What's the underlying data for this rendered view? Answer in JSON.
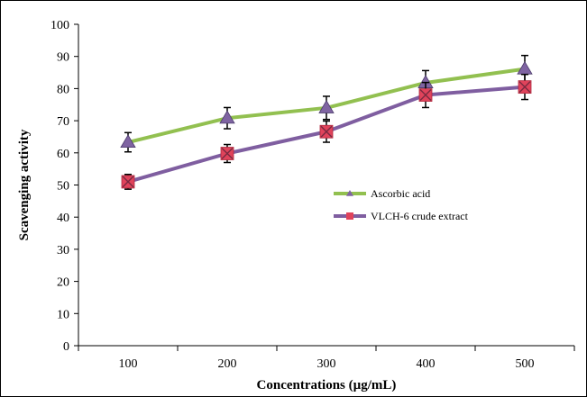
{
  "chart_data": {
    "type": "line",
    "title": "",
    "xlabel": "Concentrations (µg/mL)",
    "ylabel": "Scavenging activity",
    "categories": [
      "100",
      "200",
      "300",
      "400",
      "500"
    ],
    "ylim": [
      0,
      100
    ],
    "yticks": [
      0,
      10,
      20,
      30,
      40,
      50,
      60,
      70,
      80,
      90,
      100
    ],
    "grid": false,
    "legend_position": "right-middle",
    "series": [
      {
        "name": "Ascorbic acid",
        "values": [
          63.3,
          70.8,
          74.0,
          81.8,
          86.1
        ],
        "errors": [
          3.0,
          3.3,
          3.6,
          3.8,
          4.2
        ],
        "line_color": "#92c050",
        "marker": "triangle",
        "marker_color": "#7f64a2"
      },
      {
        "name": "VLCH-6 crude extract",
        "values": [
          51.0,
          59.8,
          66.6,
          78.0,
          80.5
        ],
        "errors": [
          2.3,
          2.8,
          3.3,
          3.9,
          3.9
        ],
        "line_color": "#7f5ea0",
        "marker": "square-x",
        "marker_color": "#e0435b"
      }
    ]
  }
}
